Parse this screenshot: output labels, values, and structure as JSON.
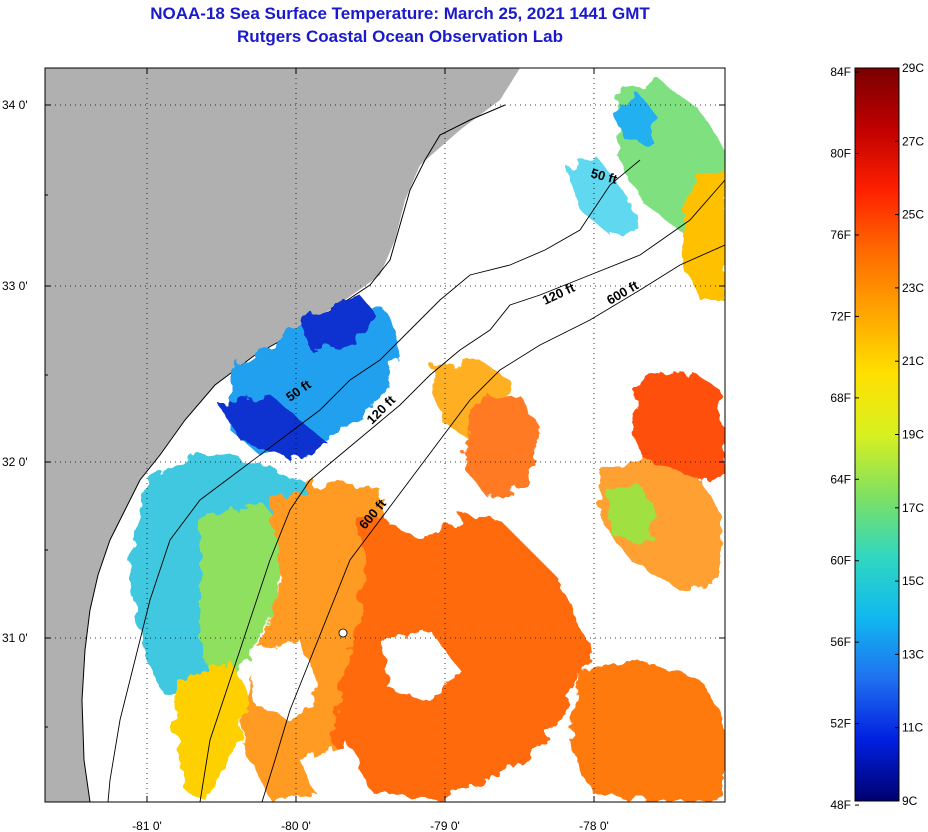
{
  "header": {
    "title": "NOAA-18 Sea Surface Temperature:  March 25, 2021 1441 GMT",
    "subtitle": "Rutgers Coastal Ocean Observation Lab"
  },
  "map": {
    "lat_labels": [
      "34 0'",
      "33 0'",
      "32 0'",
      "31 0'"
    ],
    "lon_labels": [
      "-81 0'",
      "-80 0'",
      "-79 0'",
      "-78 0'"
    ],
    "isobaths": [
      {
        "label": "50 ft"
      },
      {
        "label": "50 ft"
      },
      {
        "label": "120 ft"
      },
      {
        "label": "120 ft"
      },
      {
        "label": "600 ft"
      },
      {
        "label": "600 ft"
      }
    ]
  },
  "colorbar": {
    "fahrenheit_labels": [
      "84F",
      "80F",
      "76F",
      "72F",
      "68F",
      "64F",
      "60F",
      "56F",
      "52F",
      "48F"
    ],
    "celsius_labels": [
      "29C",
      "27C",
      "25C",
      "23C",
      "21C",
      "19C",
      "17C",
      "15C",
      "13C",
      "11C",
      "9C"
    ],
    "range_c": [
      9,
      29
    ],
    "gradient": [
      "#7a0000",
      "#c00000",
      "#ff2000",
      "#ff6a00",
      "#ffa500",
      "#ffe000",
      "#d8f020",
      "#80e060",
      "#30d8c0",
      "#10b8f0",
      "#2070f0",
      "#0020e0",
      "#00006e"
    ]
  }
}
